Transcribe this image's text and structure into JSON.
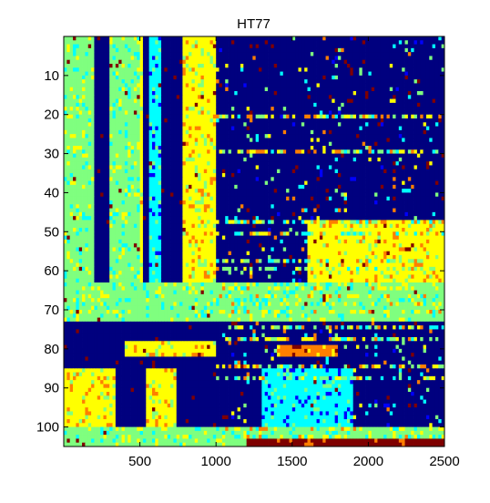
{
  "chart_data": {
    "type": "heatmap",
    "title": "HT77",
    "xlabel": "",
    "ylabel": "",
    "xlim": [
      0,
      2500
    ],
    "ylim": [
      0,
      105
    ],
    "y_reversed": true,
    "grid": false,
    "xticks": [
      500,
      1000,
      1500,
      2000,
      2500
    ],
    "yticks": [
      10,
      20,
      30,
      40,
      50,
      60,
      70,
      80,
      90,
      100
    ],
    "palette": [
      "#00007f",
      "#0000ff",
      "#00ffff",
      "#7fff7f",
      "#ffff00",
      "#ff7f00",
      "#7f0000"
    ],
    "zones": [
      {
        "y": [
          0,
          63
        ],
        "x": [
          0,
          200
        ],
        "level": 3
      },
      {
        "y": [
          0,
          63
        ],
        "x": [
          200,
          300
        ],
        "level": 0
      },
      {
        "y": [
          0,
          63
        ],
        "x": [
          300,
          500
        ],
        "level": 3
      },
      {
        "y": [
          0,
          63
        ],
        "x": [
          500,
          520
        ],
        "level": 4
      },
      {
        "y": [
          0,
          63
        ],
        "x": [
          520,
          560
        ],
        "level": 0
      },
      {
        "y": [
          0,
          63
        ],
        "x": [
          560,
          640
        ],
        "level": 2
      },
      {
        "y": [
          0,
          63
        ],
        "x": [
          640,
          780
        ],
        "level": 0
      },
      {
        "y": [
          0,
          63
        ],
        "x": [
          780,
          1000
        ],
        "level": 4
      },
      {
        "y": [
          0,
          63
        ],
        "x": [
          1000,
          2500
        ],
        "level": 0
      },
      {
        "y": [
          47,
          63
        ],
        "x": [
          1600,
          2500
        ],
        "level": 4
      },
      {
        "y": [
          63,
          73
        ],
        "x": [
          0,
          2500
        ],
        "level": 3
      },
      {
        "y": [
          73,
          76
        ],
        "x": [
          0,
          2500
        ],
        "level": 0
      },
      {
        "y": [
          76,
          80
        ],
        "x": [
          0,
          2500
        ],
        "level": 0
      },
      {
        "y": [
          78,
          82
        ],
        "x": [
          400,
          1000
        ],
        "level": 4
      },
      {
        "y": [
          79,
          82
        ],
        "x": [
          1400,
          1800
        ],
        "level": 5
      },
      {
        "y": [
          85,
          100
        ],
        "x": [
          0,
          350
        ],
        "level": 4
      },
      {
        "y": [
          85,
          100
        ],
        "x": [
          550,
          750
        ],
        "level": 4
      },
      {
        "y": [
          85,
          100
        ],
        "x": [
          1300,
          1900
        ],
        "level": 2
      },
      {
        "y": [
          100,
          105
        ],
        "x": [
          0,
          2500
        ],
        "level": 3
      },
      {
        "y": [
          103,
          105
        ],
        "x": [
          1200,
          2500
        ],
        "level": 6
      }
    ]
  }
}
